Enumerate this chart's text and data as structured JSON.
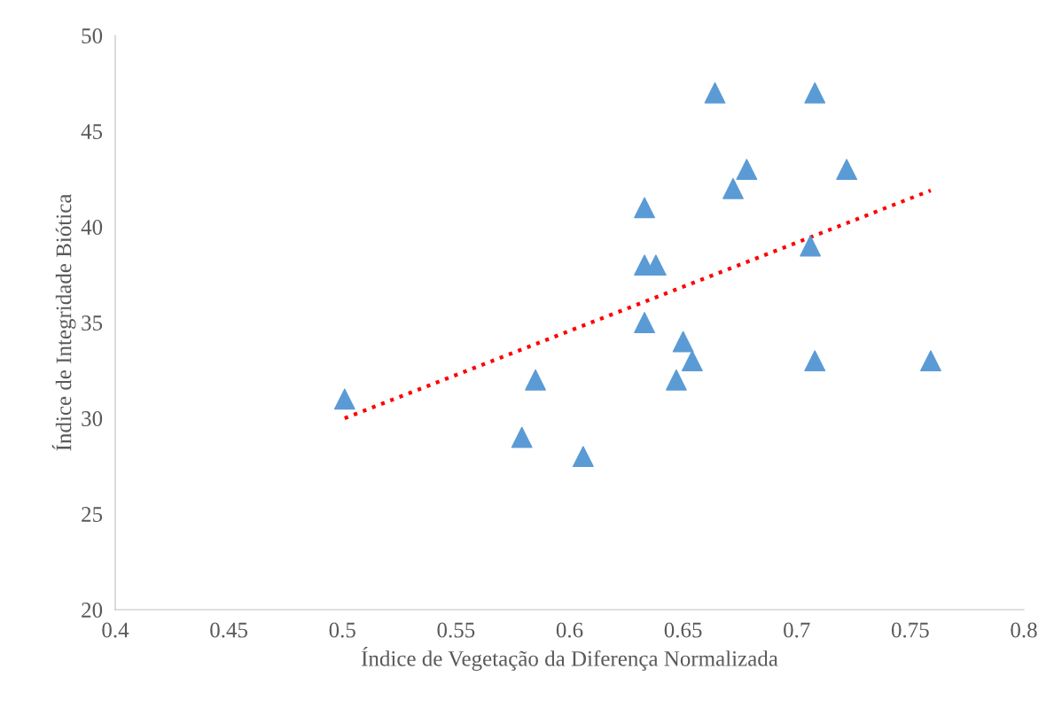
{
  "chart_data": {
    "type": "scatter",
    "xlabel": "Índice de Vegetação da Diferença Normalizada",
    "ylabel": "Índice de Integridade Biótica",
    "xlim": [
      0.4,
      0.8
    ],
    "xticks": [
      {
        "value": 0.4,
        "label": "0.4"
      },
      {
        "value": 0.45,
        "label": "0.45"
      },
      {
        "value": 0.5,
        "label": "0.5"
      },
      {
        "value": 0.55,
        "label": "0.55"
      },
      {
        "value": 0.6,
        "label": "0.6"
      },
      {
        "value": 0.65,
        "label": "0.65"
      },
      {
        "value": 0.7,
        "label": "0.7"
      },
      {
        "value": 0.75,
        "label": "0.75"
      },
      {
        "value": 0.8,
        "label": "0.8"
      }
    ],
    "ylim": [
      20,
      50
    ],
    "yticks": [
      20,
      25,
      30,
      35,
      40,
      45,
      50
    ],
    "grid": false,
    "legend": false,
    "series": [
      {
        "color": "#5b9bd5",
        "marker": "triangle",
        "x": [
          0.501,
          0.579,
          0.585,
          0.606,
          0.633,
          0.633,
          0.638,
          0.633,
          0.647,
          0.65,
          0.654,
          0.664,
          0.672,
          0.678,
          0.706,
          0.708,
          0.708,
          0.722,
          0.759
        ],
        "values": [
          31,
          29,
          32,
          28,
          41,
          38,
          38,
          35,
          32,
          34,
          33,
          47,
          42,
          43,
          39,
          47,
          33,
          43,
          33
        ]
      },
      {
        "type": "line",
        "color": "#ff0000",
        "line_style": "dotted",
        "marker": "none",
        "x": [
          0.501,
          0.759
        ],
        "values": [
          30.0,
          41.9
        ]
      }
    ]
  }
}
